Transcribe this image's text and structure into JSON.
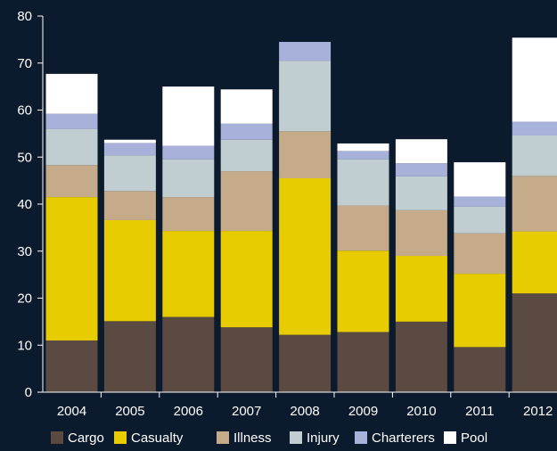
{
  "colors": {
    "background": "#0b1a2c",
    "axis": "#ffffff",
    "Cargo": "#5a4a41",
    "Casualty": "#e6cc00",
    "Illness": "#c5ab8a",
    "Injury": "#c0ced2",
    "Charterers": "#a7b1d9",
    "Pool": "#ffffff"
  },
  "chart_data": {
    "type": "bar",
    "stacked": true,
    "categories": [
      "2004",
      "2005",
      "2006",
      "2007",
      "2008",
      "2009",
      "2010",
      "2011",
      "2012"
    ],
    "series": [
      {
        "name": "Cargo",
        "values": [
          11,
          15.1,
          16,
          13.8,
          12.2,
          12.8,
          15,
          9.6,
          21
        ]
      },
      {
        "name": "Casualty",
        "values": [
          30.5,
          21.5,
          18.3,
          20.5,
          33.3,
          17.3,
          14,
          15.6,
          13.2
        ]
      },
      {
        "name": "Illness",
        "values": [
          6.8,
          6.2,
          7.2,
          12.7,
          10,
          9.6,
          9.7,
          8.6,
          11.8
        ]
      },
      {
        "name": "Injury",
        "values": [
          7.7,
          7.6,
          8,
          6.7,
          15,
          9.8,
          7.2,
          5.7,
          8.6
        ]
      },
      {
        "name": "Charterers",
        "values": [
          3.2,
          2.6,
          2.9,
          3.4,
          4,
          1.8,
          2.8,
          2.1,
          2.9
        ]
      },
      {
        "name": "Pool",
        "values": [
          8.5,
          0.7,
          12.6,
          7.3,
          0,
          1.6,
          5.1,
          7.3,
          17.9
        ]
      }
    ],
    "y_ticks": [
      "0",
      "10",
      "20",
      "30",
      "40",
      "50",
      "60",
      "70",
      "80"
    ],
    "ylim": [
      0,
      80
    ],
    "grid": false,
    "legend_position": "bottom"
  }
}
